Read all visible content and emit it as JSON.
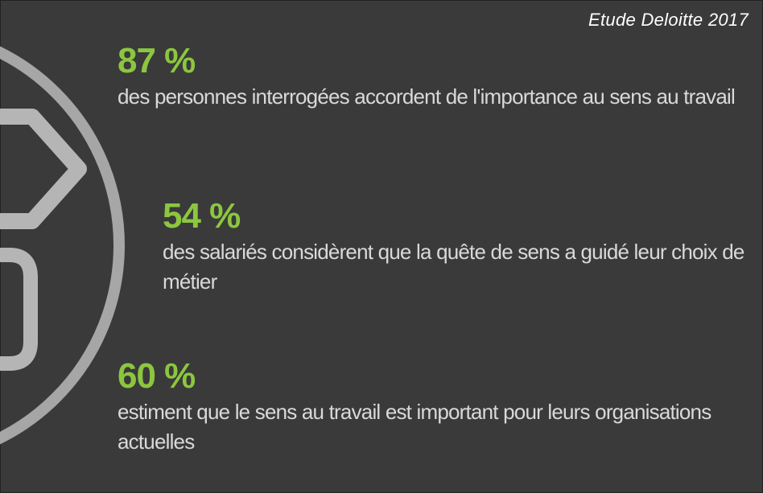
{
  "source": "Etude Deloitte 2017",
  "colors": {
    "background": "#3a3a3a",
    "accent": "#8cc63f",
    "text": "#d9d9d9",
    "decoration": "#9e9e9e"
  },
  "stats": [
    {
      "value": "87 %",
      "description": "des personnes interrogées accordent de l'importance au sens au travail"
    },
    {
      "value": "54 %",
      "description": "des salariés considèrent que la quête de sens a guidé leur choix de métier"
    },
    {
      "value": "60 %",
      "description": "estiment que le sens au travail est important pour leurs organisations actuelles"
    }
  ]
}
